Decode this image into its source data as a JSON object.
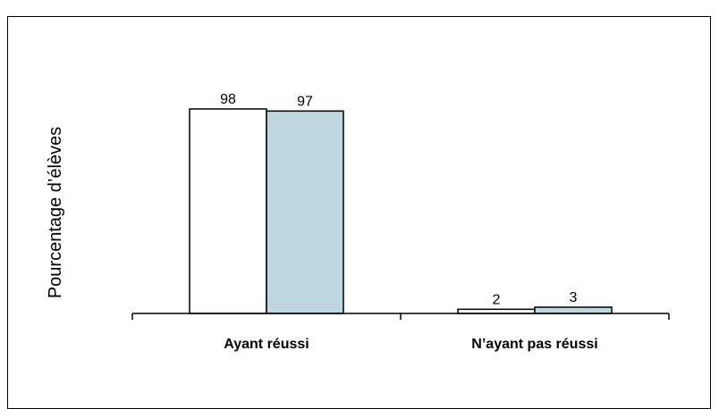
{
  "chart_data": {
    "type": "bar",
    "title": "",
    "ylabel": "Pourcentage d’élèves",
    "xlabel": "",
    "categories": [
      "Ayant réussi",
      "N’ayant pas réussi"
    ],
    "series": [
      {
        "values": [
          98,
          2
        ],
        "color": "#ffffff"
      },
      {
        "values": [
          97,
          3
        ],
        "color": "#bdd7e1"
      }
    ],
    "ylim": [
      0,
      100
    ],
    "grid": false,
    "legend": "none",
    "show_data_labels": true
  }
}
